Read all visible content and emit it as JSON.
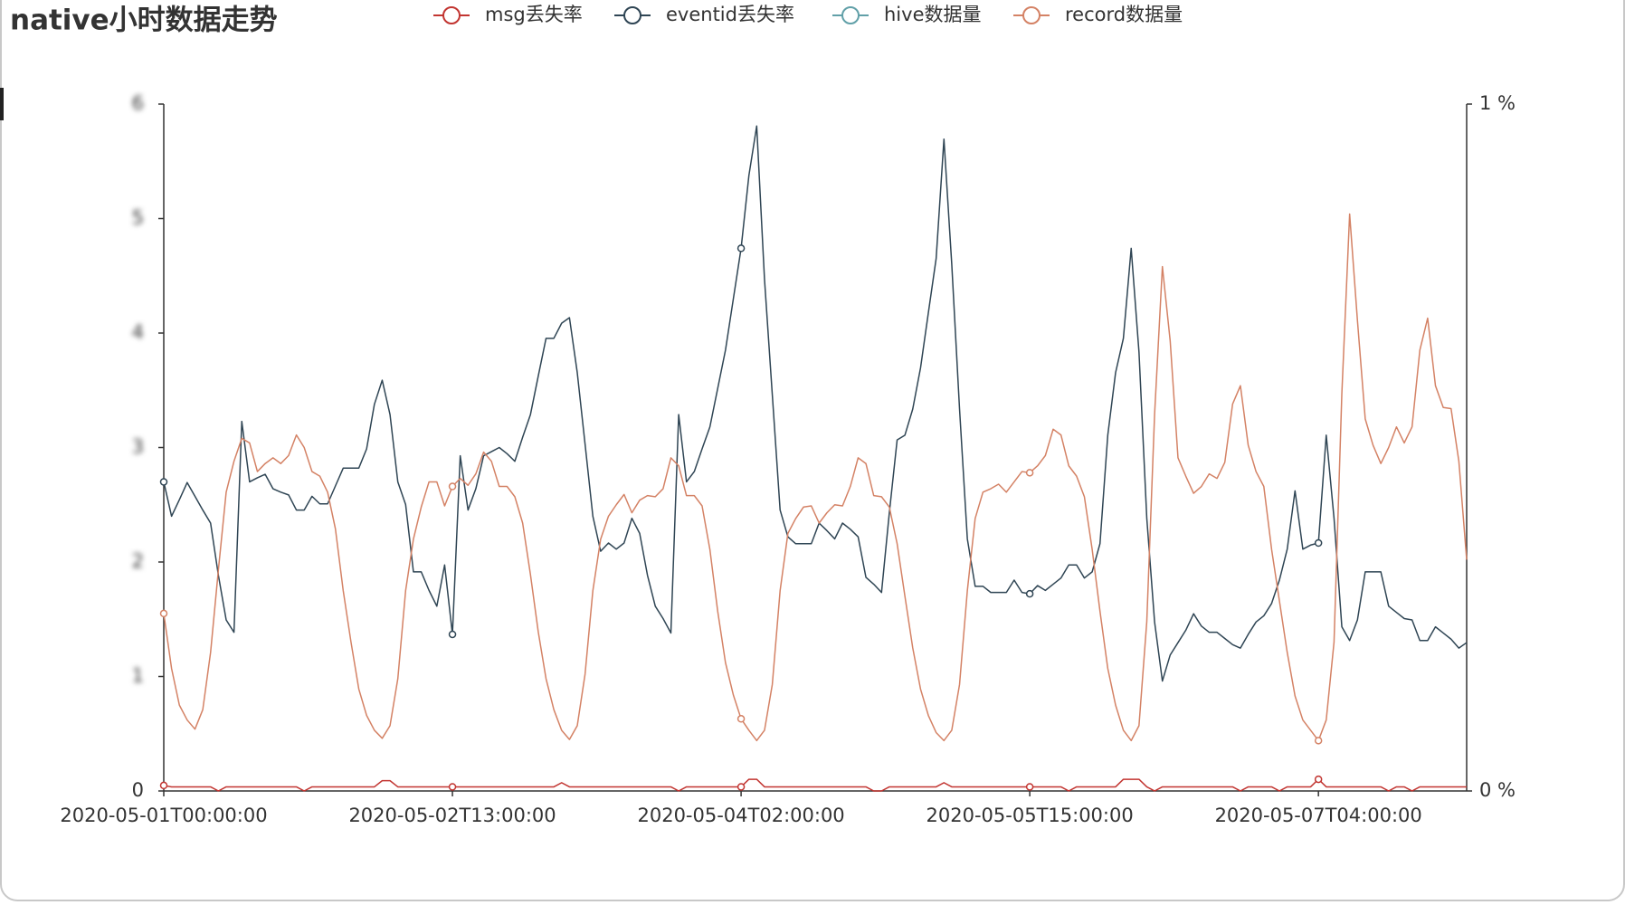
{
  "chart_data": {
    "type": "line",
    "title": "native小时数据走势",
    "categories": [
      "2020-05-01T00:00:00",
      null,
      null,
      null,
      null,
      null,
      null,
      null,
      null,
      null,
      null,
      null,
      null,
      null,
      null,
      null,
      null,
      null,
      null,
      null,
      null,
      null,
      null,
      null,
      null,
      null,
      null,
      null,
      null,
      null,
      null,
      null,
      null,
      null,
      null,
      null,
      null,
      "2020-05-02T13:00:00",
      null,
      null,
      null,
      null,
      null,
      null,
      null,
      null,
      null,
      null,
      null,
      null,
      null,
      null,
      null,
      null,
      null,
      null,
      null,
      null,
      null,
      null,
      null,
      null,
      null,
      null,
      null,
      null,
      null,
      null,
      null,
      null,
      null,
      null,
      null,
      null,
      "2020-05-04T02:00:00",
      null,
      null,
      null,
      null,
      null,
      null,
      null,
      null,
      null,
      null,
      null,
      null,
      null,
      null,
      null,
      null,
      null,
      null,
      null,
      null,
      null,
      null,
      null,
      null,
      null,
      null,
      null,
      null,
      null,
      null,
      null,
      null,
      null,
      null,
      null,
      null,
      "2020-05-05T15:00:00",
      null,
      null,
      null,
      null,
      null,
      null,
      null,
      null,
      null,
      null,
      null,
      null,
      null,
      null,
      null,
      null,
      null,
      null,
      null,
      null,
      null,
      null,
      null,
      null,
      null,
      null,
      null,
      null,
      null,
      null,
      null,
      null,
      null,
      null,
      null,
      null,
      "2020-05-07T04:00:00",
      null,
      null,
      null,
      null,
      null,
      null,
      null,
      null,
      null,
      null,
      null,
      null,
      null,
      null,
      null,
      null,
      null,
      null,
      null
    ],
    "series": [
      {
        "name": "msg丢失率",
        "color": "#c23531",
        "axis": "y2",
        "values": [
          0.008,
          0.006,
          0.006,
          0.006,
          0.006,
          0.006,
          0.006,
          0,
          0.006,
          0.006,
          0.006,
          0.006,
          0.006,
          0.006,
          0.006,
          0.006,
          0.006,
          0.006,
          0,
          0.006,
          0.006,
          0.006,
          0.006,
          0.006,
          0.006,
          0.006,
          0.006,
          0.006,
          0.015,
          0.015,
          0.006,
          0.006,
          0.006,
          0.006,
          0.006,
          0.006,
          0.006,
          0.006,
          0.006,
          0.006,
          0.006,
          0.006,
          0.006,
          0.006,
          0.006,
          0.006,
          0.006,
          0.006,
          0.006,
          0.006,
          0.006,
          0.012,
          0.006,
          0.006,
          0.006,
          0.006,
          0.006,
          0.006,
          0.006,
          0.006,
          0.006,
          0.006,
          0.006,
          0.006,
          0.006,
          0.006,
          0,
          0.006,
          0.006,
          0.006,
          0.006,
          0.006,
          0.006,
          0.006,
          0.006,
          0.017,
          0.017,
          0.006,
          0.006,
          0.006,
          0.006,
          0.006,
          0.006,
          0.006,
          0.006,
          0.006,
          0.006,
          0.006,
          0.006,
          0.006,
          0.006,
          0,
          0,
          0.006,
          0.006,
          0.006,
          0.006,
          0.006,
          0.006,
          0.006,
          0.012,
          0.006,
          0.006,
          0.006,
          0.006,
          0.006,
          0.006,
          0.006,
          0.006,
          0.006,
          0.006,
          0.006,
          0.006,
          0.006,
          0.006,
          0.006,
          0,
          0.006,
          0.006,
          0.006,
          0.006,
          0.006,
          0.006,
          0.017,
          0.017,
          0.017,
          0.006,
          0,
          0.006,
          0.006,
          0.006,
          0.006,
          0.006,
          0.006,
          0.006,
          0.006,
          0.006,
          0.006,
          0,
          0.006,
          0.006,
          0.006,
          0.006,
          0,
          0.006,
          0.006,
          0.006,
          0.006,
          0.017,
          0.006,
          0.006,
          0.006,
          0.006,
          0.006,
          0.006,
          0.006,
          0.006,
          0,
          0.006,
          0.006,
          0,
          0.006,
          0.006,
          0.006,
          0.006,
          0.006,
          0.006,
          0.006
        ]
      },
      {
        "name": "eventid丢失率",
        "color": "#2f4554",
        "axis": "y2",
        "values": [
          0.45,
          0.4,
          0.424,
          0.449,
          0.429,
          0.409,
          0.39,
          0.314,
          0.249,
          0.231,
          0.538,
          0.45,
          0.456,
          0.461,
          0.44,
          0.435,
          0.431,
          0.409,
          0.409,
          0.429,
          0.418,
          0.418,
          0.444,
          0.47,
          0.47,
          0.47,
          0.498,
          0.563,
          0.598,
          0.548,
          0.45,
          0.417,
          0.319,
          0.319,
          0.292,
          0.269,
          0.329,
          0.228,
          0.488,
          0.409,
          0.44,
          0.488,
          0.494,
          0.5,
          0.491,
          0.48,
          0.515,
          0.548,
          0.604,
          0.659,
          0.659,
          0.681,
          0.689,
          0.609,
          0.505,
          0.4,
          0.349,
          0.361,
          0.352,
          0.361,
          0.397,
          0.375,
          0.314,
          0.269,
          0.251,
          0.23,
          0.548,
          0.45,
          0.465,
          0.498,
          0.53,
          0.586,
          0.642,
          0.716,
          0.79,
          0.896,
          0.968,
          0.745,
          0.577,
          0.409,
          0.37,
          0.36,
          0.36,
          0.36,
          0.39,
          0.379,
          0.367,
          0.39,
          0.381,
          0.37,
          0.311,
          0.301,
          0.289,
          0.405,
          0.511,
          0.518,
          0.556,
          0.616,
          0.696,
          0.775,
          0.949,
          0.767,
          0.556,
          0.367,
          0.298,
          0.298,
          0.289,
          0.289,
          0.289,
          0.307,
          0.289,
          0.287,
          0.299,
          0.292,
          0.301,
          0.31,
          0.329,
          0.329,
          0.31,
          0.319,
          0.36,
          0.518,
          0.609,
          0.659,
          0.79,
          0.639,
          0.397,
          0.246,
          0.16,
          0.198,
          0.216,
          0.234,
          0.258,
          0.24,
          0.231,
          0.231,
          0.222,
          0.213,
          0.208,
          0.228,
          0.246,
          0.255,
          0.273,
          0.307,
          0.352,
          0.437,
          0.352,
          0.358,
          0.361,
          0.518,
          0.397,
          0.239,
          0.219,
          0.249,
          0.319,
          0.319,
          0.319,
          0.269,
          0.26,
          0.251,
          0.249,
          0.219,
          0.219,
          0.239,
          0.23,
          0.221,
          0.208,
          0.216
        ]
      },
      {
        "name": "hive数据量",
        "color": "#61a0a8"
      },
      {
        "name": "record数据量",
        "color": "#d48265",
        "values": [
          1.55,
          1.07,
          0.75,
          0.62,
          0.54,
          0.71,
          1.21,
          1.93,
          2.61,
          2.88,
          3.08,
          3.04,
          2.79,
          2.86,
          2.91,
          2.86,
          2.93,
          3.11,
          3.0,
          2.79,
          2.75,
          2.61,
          2.29,
          1.75,
          1.3,
          0.89,
          0.66,
          0.53,
          0.46,
          0.57,
          0.98,
          1.75,
          2.2,
          2.48,
          2.7,
          2.7,
          2.49,
          2.66,
          2.73,
          2.67,
          2.77,
          2.96,
          2.88,
          2.66,
          2.66,
          2.57,
          2.34,
          1.89,
          1.39,
          0.98,
          0.71,
          0.53,
          0.45,
          0.57,
          1.02,
          1.75,
          2.2,
          2.4,
          2.5,
          2.59,
          2.43,
          2.54,
          2.58,
          2.57,
          2.64,
          2.91,
          2.84,
          2.58,
          2.58,
          2.49,
          2.11,
          1.57,
          1.12,
          0.84,
          0.63,
          0.53,
          0.44,
          0.53,
          0.93,
          1.75,
          2.25,
          2.38,
          2.48,
          2.49,
          2.34,
          2.43,
          2.5,
          2.49,
          2.66,
          2.91,
          2.86,
          2.58,
          2.57,
          2.48,
          2.16,
          1.7,
          1.25,
          0.89,
          0.66,
          0.51,
          0.44,
          0.53,
          0.93,
          1.75,
          2.38,
          2.61,
          2.64,
          2.68,
          2.61,
          2.7,
          2.79,
          2.78,
          2.84,
          2.93,
          3.16,
          3.11,
          2.84,
          2.75,
          2.57,
          2.11,
          1.57,
          1.07,
          0.75,
          0.53,
          0.44,
          0.57,
          1.48,
          3.29,
          4.58,
          3.93,
          2.91,
          2.75,
          2.6,
          2.66,
          2.77,
          2.73,
          2.87,
          3.38,
          3.54,
          3.02,
          2.79,
          2.66,
          2.11,
          1.66,
          1.21,
          0.83,
          0.62,
          0.53,
          0.44,
          0.62,
          1.3,
          3.47,
          5.04,
          4.11,
          3.25,
          3.02,
          2.86,
          3.0,
          3.18,
          3.04,
          3.18,
          3.85,
          4.13,
          3.54,
          3.35,
          3.34,
          2.88,
          2.02
        ]
      }
    ],
    "ylim": [
      0,
      6
    ],
    "yticks": [
      0,
      1,
      2,
      3,
      4,
      5,
      6
    ],
    "y2lim": [
      0,
      1
    ],
    "y2ticks": [
      {
        "value": 0,
        "label": "0 %"
      },
      {
        "value": 1,
        "label": "1 %"
      }
    ],
    "legend": "top"
  }
}
